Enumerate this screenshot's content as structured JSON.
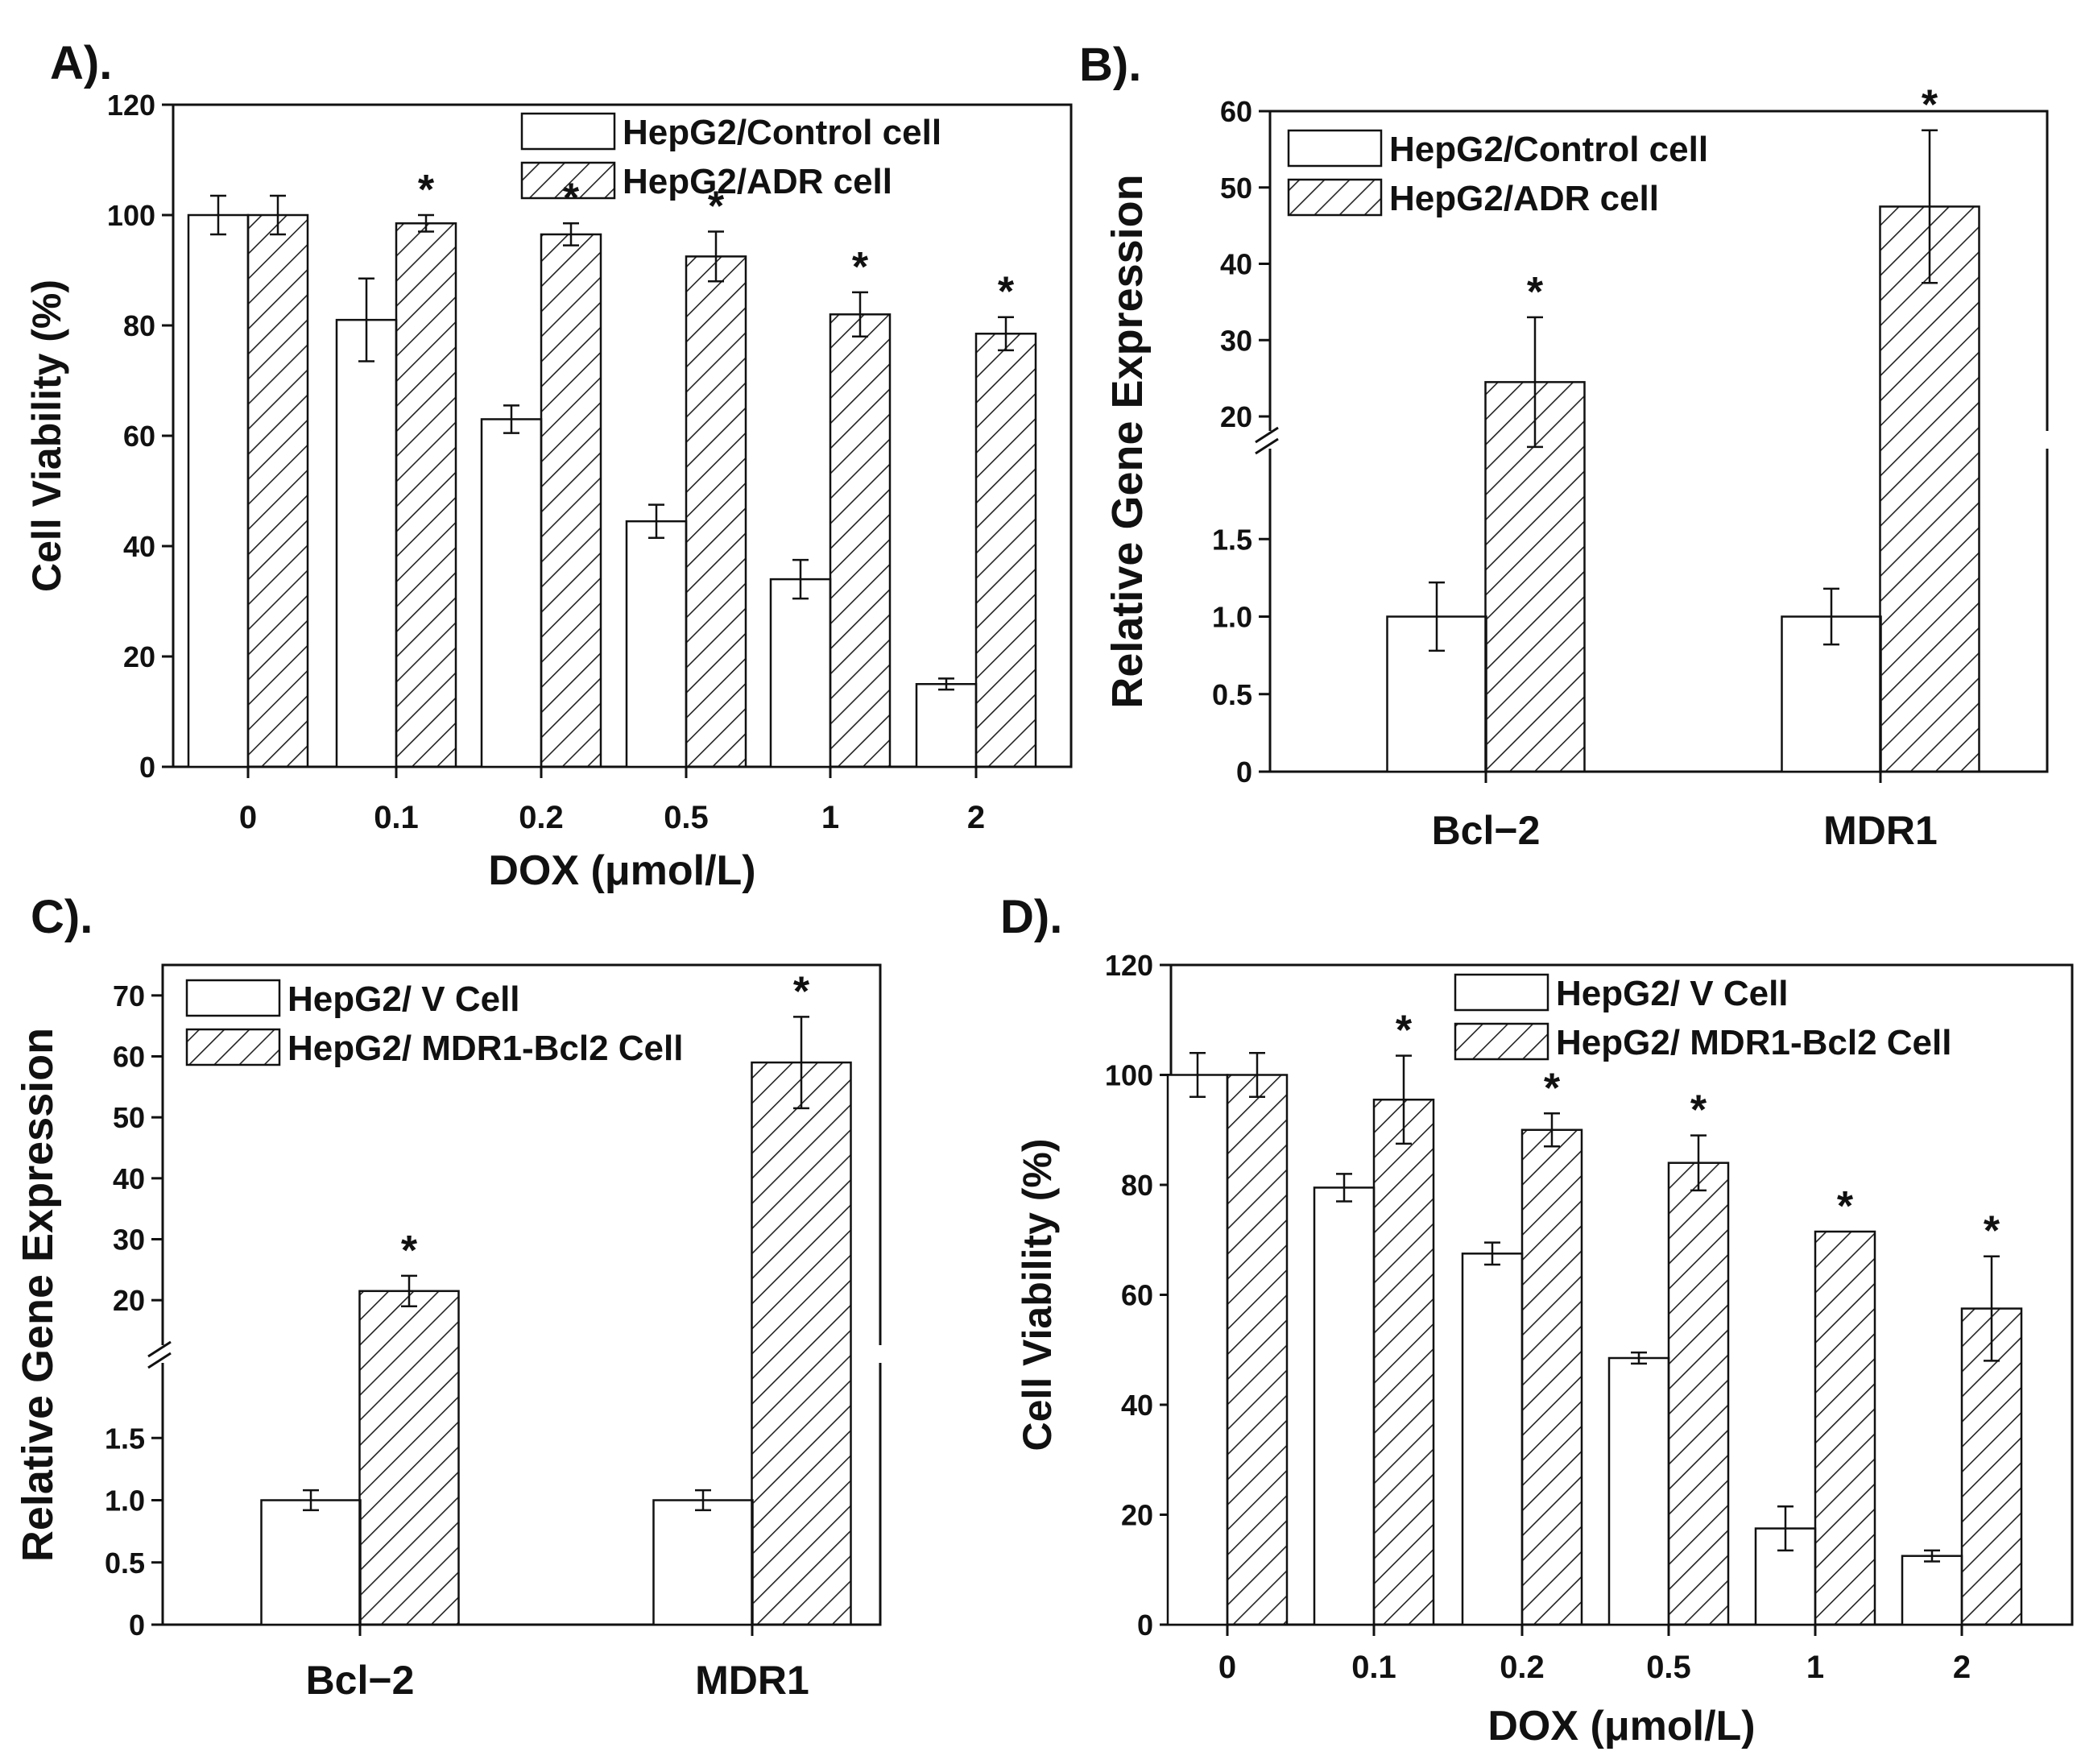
{
  "chart_data": [
    {
      "panel": "A).",
      "type": "bar",
      "xlabel": "DOX (μmol/L)",
      "ylabel": "Cell Viability (%)",
      "ylim": [
        0,
        120
      ],
      "yticks": [
        "0",
        "20",
        "40",
        "60",
        "80",
        "100",
        "120"
      ],
      "categories": [
        "0",
        "0.1",
        "0.2",
        "0.5",
        "1",
        "2"
      ],
      "legend_position": "top-right",
      "series": [
        {
          "name": "HepG2/Control cell",
          "pattern": "open",
          "values": [
            100,
            81,
            63,
            44.5,
            34,
            15
          ],
          "errors": [
            3.5,
            7.5,
            2.5,
            3,
            3.5,
            1
          ]
        },
        {
          "name": "HepG2/ADR cell",
          "pattern": "hatched",
          "values": [
            100,
            98.5,
            96.5,
            92.5,
            82,
            78.5
          ],
          "errors": [
            3.5,
            1.5,
            2,
            4.5,
            4,
            3
          ]
        }
      ],
      "significance": [
        "",
        "*",
        "*",
        "*",
        "*",
        "*"
      ]
    },
    {
      "panel": "B).",
      "type": "bar",
      "xlabel": "",
      "ylabel": "Relative Gene Expression",
      "broken_axis": true,
      "ylim_lower": [
        0,
        2
      ],
      "ylim_upper": [
        20,
        60
      ],
      "yticks_lower": [
        "0",
        "0.5",
        "1.0",
        "1.5"
      ],
      "yticks_upper": [
        "20",
        "30",
        "40",
        "50",
        "60"
      ],
      "categories": [
        "Bcl−2",
        "MDR1"
      ],
      "legend_position": "top-left",
      "series": [
        {
          "name": "HepG2/Control cell",
          "pattern": "open",
          "values": [
            1.0,
            1.0
          ],
          "errors": [
            0.22,
            0.18
          ]
        },
        {
          "name": "HepG2/ADR cell",
          "pattern": "hatched",
          "values": [
            24.5,
            47.5
          ],
          "errors": [
            8.5,
            10
          ]
        }
      ],
      "significance": [
        "*",
        "*"
      ]
    },
    {
      "panel": "C).",
      "type": "bar",
      "xlabel": "",
      "ylabel": "Relative Gene Expression",
      "broken_axis": true,
      "ylim_lower": [
        0,
        2
      ],
      "ylim_upper": [
        15,
        75
      ],
      "yticks_lower": [
        "0",
        "0.5",
        "1.0",
        "1.5"
      ],
      "yticks_upper": [
        "20",
        "30",
        "40",
        "50",
        "60",
        "70"
      ],
      "categories": [
        "Bcl−2",
        "MDR1"
      ],
      "legend_position": "top-left",
      "series": [
        {
          "name": "HepG2/ V Cell",
          "pattern": "open",
          "values": [
            1.0,
            1.0
          ],
          "errors": [
            0.08,
            0.08
          ]
        },
        {
          "name": "HepG2/ MDR1-Bcl2 Cell",
          "pattern": "hatched",
          "values": [
            21.5,
            59
          ],
          "errors": [
            2.5,
            7.5
          ]
        }
      ],
      "significance": [
        "*",
        "*"
      ]
    },
    {
      "panel": "D).",
      "type": "bar",
      "xlabel": "DOX (μmol/L)",
      "ylabel": "Cell Viability (%)",
      "ylim": [
        0,
        120
      ],
      "yticks": [
        "0",
        "20",
        "40",
        "60",
        "80",
        "100",
        "120"
      ],
      "categories": [
        "0",
        "0.1",
        "0.2",
        "0.5",
        "1",
        "2"
      ],
      "legend_position": "top-right",
      "series": [
        {
          "name": "HepG2/ V Cell",
          "pattern": "open",
          "values": [
            100,
            79.5,
            67.5,
            48.5,
            17.5,
            12.5
          ],
          "errors": [
            4,
            2.5,
            2,
            1,
            4,
            1
          ]
        },
        {
          "name": "HepG2/ MDR1-Bcl2 Cell",
          "pattern": "hatched",
          "values": [
            100,
            95.5,
            90,
            84,
            71.5,
            57.5
          ],
          "errors": [
            4,
            8,
            3,
            5,
            0,
            9.5
          ]
        }
      ],
      "significance": [
        "",
        "*",
        "*",
        "*",
        "*",
        "*"
      ]
    }
  ]
}
